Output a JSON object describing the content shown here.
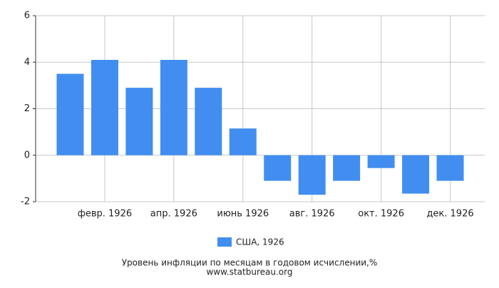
{
  "chart_data": {
    "type": "bar",
    "title": "Уровень инфляции по месяцам в годовом исчислении,%",
    "subtitle": "www.statbureau.org",
    "categories": [
      null,
      "февр. 1926",
      null,
      "апр. 1926",
      null,
      "июнь 1926",
      null,
      "авг. 1926",
      null,
      "окт. 1926",
      null,
      "дек. 1926"
    ],
    "series": [
      {
        "name": "США, 1926",
        "color": "#418ef0",
        "values": [
          3.5,
          4.1,
          2.9,
          4.1,
          2.9,
          1.15,
          -1.1,
          -1.7,
          -1.1,
          -0.55,
          -1.65,
          -1.1
        ]
      }
    ],
    "ylim": [
      -2,
      6
    ],
    "yticks": [
      -2,
      0,
      2,
      4,
      6
    ],
    "grid": true,
    "legend": "bottom"
  }
}
